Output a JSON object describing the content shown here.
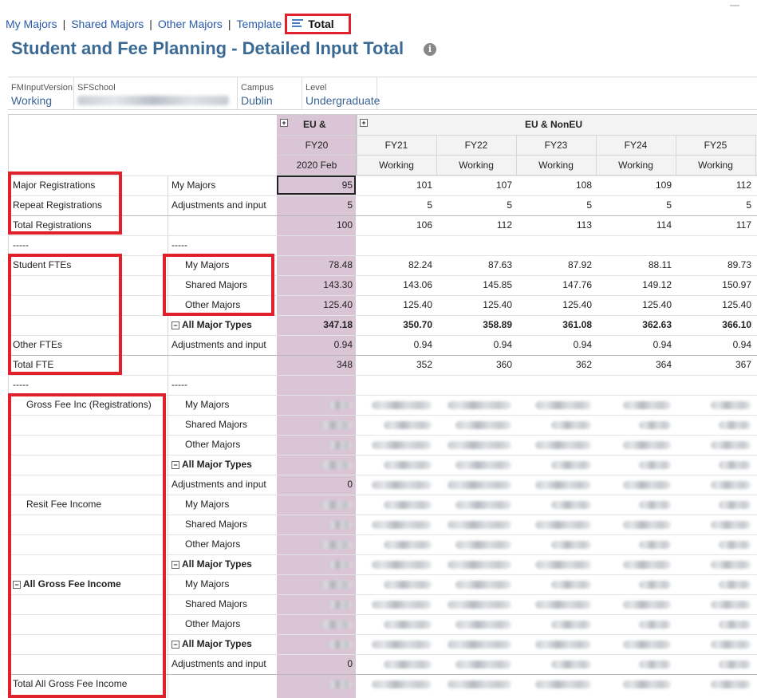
{
  "nav": {
    "links": [
      "My Majors",
      "Shared Majors",
      "Other Majors",
      "Template"
    ],
    "separator": "|",
    "active": "Total"
  },
  "title": "Student and Fee Planning - Detailed Input Total",
  "info_icon": "i",
  "pov": [
    {
      "label": "FMInputVersion",
      "value": "Working"
    },
    {
      "label": "SFSchool",
      "value": ""
    },
    {
      "label": "Campus",
      "value": "Dublin"
    },
    {
      "label": "Level",
      "value": "Undergraduate"
    }
  ],
  "header": {
    "group1": "EU &",
    "group2": "EU & NonEU",
    "expand_glyph": "+",
    "collapse_glyph": "−",
    "years": [
      "FY20",
      "FY21",
      "FY22",
      "FY23",
      "FY24",
      "FY25"
    ],
    "versions": [
      "2020 Feb",
      "Working",
      "Working",
      "Working",
      "Working",
      "Working"
    ]
  },
  "colors": {
    "highlight": "#dac5d6",
    "annotation_red": "#e0202a",
    "link": "#2a5aa8",
    "title": "#3a6a94"
  },
  "rows": [
    {
      "l1": "Major Registrations",
      "l2": "My Majors",
      "values": [
        "95",
        "101",
        "107",
        "108",
        "109",
        "112"
      ]
    },
    {
      "l1": "Repeat Registrations",
      "l2": "Adjustments and input",
      "values": [
        "5",
        "5",
        "5",
        "5",
        "5",
        "5"
      ]
    },
    {
      "l1": "Total Registrations",
      "l2": "",
      "values": [
        "100",
        "106",
        "112",
        "113",
        "114",
        "117"
      ]
    },
    {
      "l1": "-----",
      "l2": "-----",
      "values": []
    },
    {
      "l1": "Student FTEs",
      "l2": "My Majors",
      "indent2": true,
      "values": [
        "78.48",
        "82.24",
        "87.63",
        "87.92",
        "88.11",
        "89.73"
      ]
    },
    {
      "l1": "",
      "l2": "Shared Majors",
      "indent2": true,
      "values": [
        "143.30",
        "143.06",
        "145.85",
        "147.76",
        "149.12",
        "150.97"
      ]
    },
    {
      "l1": "",
      "l2": "Other Majors",
      "indent2": true,
      "values": [
        "125.40",
        "125.40",
        "125.40",
        "125.40",
        "125.40",
        "125.40"
      ]
    },
    {
      "l1": "",
      "l2": "All Major Types",
      "collapsible2": true,
      "bold": true,
      "values": [
        "347.18",
        "350.70",
        "358.89",
        "361.08",
        "362.63",
        "366.10"
      ]
    },
    {
      "l1": "Other FTEs",
      "l2": "Adjustments and input",
      "values": [
        "0.94",
        "0.94",
        "0.94",
        "0.94",
        "0.94",
        "0.94"
      ]
    },
    {
      "l1": "Total FTE",
      "l2": "",
      "values": [
        "348",
        "352",
        "360",
        "362",
        "364",
        "367"
      ]
    },
    {
      "l1": "-----",
      "l2": "-----",
      "values": []
    },
    {
      "l1": "Gross Fee Inc (Registrations)",
      "indent1": true,
      "l2": "My Majors",
      "indent2": true,
      "values": [
        "",
        "",
        "",
        "",
        "",
        ""
      ]
    },
    {
      "l1": "",
      "l2": "Shared Majors",
      "indent2": true,
      "values": [
        "",
        "",
        "",
        "",
        "",
        ""
      ]
    },
    {
      "l1": "",
      "l2": "Other Majors",
      "indent2": true,
      "values": [
        "",
        "",
        "",
        "",
        "",
        ""
      ]
    },
    {
      "l1": "",
      "l2": "All Major Types",
      "collapsible2": true,
      "bold": true,
      "values": [
        "",
        "",
        "",
        "",
        "",
        ""
      ]
    },
    {
      "l1": "",
      "l2": "Adjustments and input",
      "values": [
        "0",
        "",
        "",
        "",
        "",
        ""
      ]
    },
    {
      "l1": "Resit Fee Income",
      "indent1": true,
      "l2": "My Majors",
      "indent2": true,
      "values": [
        "",
        "",
        "",
        "",
        "",
        ""
      ]
    },
    {
      "l1": "",
      "l2": "Shared Majors",
      "indent2": true,
      "values": [
        "",
        "",
        "",
        "",
        "",
        ""
      ]
    },
    {
      "l1": "",
      "l2": "Other Majors",
      "indent2": true,
      "values": [
        "",
        "",
        "",
        "",
        "",
        ""
      ]
    },
    {
      "l1": "",
      "l2": "All Major Types",
      "collapsible2": true,
      "bold": true,
      "values": [
        "",
        "",
        "",
        "",
        "",
        ""
      ]
    },
    {
      "l1": "All Gross Fee Income",
      "collapsible1": true,
      "bold1": true,
      "l2": "My Majors",
      "indent2": true,
      "values": [
        "",
        "",
        "",
        "",
        "",
        ""
      ]
    },
    {
      "l1": "",
      "l2": "Shared Majors",
      "indent2": true,
      "values": [
        "",
        "",
        "",
        "",
        "",
        ""
      ]
    },
    {
      "l1": "",
      "l2": "Other Majors",
      "indent2": true,
      "values": [
        "",
        "",
        "",
        "",
        "",
        ""
      ]
    },
    {
      "l1": "",
      "l2": "All Major Types",
      "collapsible2": true,
      "bold": true,
      "values": [
        "",
        "",
        "",
        "",
        "",
        ""
      ]
    },
    {
      "l1": "",
      "l2": "Adjustments and input",
      "values": [
        "0",
        "",
        "",
        "",
        "",
        ""
      ]
    },
    {
      "l1": "Total All Gross Fee Income",
      "l2": "",
      "values": [
        "",
        "",
        "",
        "",
        "",
        ""
      ]
    }
  ]
}
